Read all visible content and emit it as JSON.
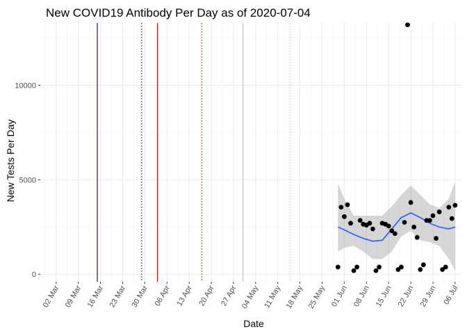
{
  "chart_data": {
    "type": "scatter",
    "title": "New COVID19 Antibody Per Day as of 2020-07-04",
    "xlabel": "Date",
    "ylabel": "New Tests Per Day",
    "xlim": [
      "2020-02-26",
      "2020-07-08"
    ],
    "ylim": [
      -400,
      13300
    ],
    "grid": true,
    "legend": "none",
    "x_ticks": [
      "2020-03-02",
      "2020-03-09",
      "2020-03-16",
      "2020-03-23",
      "2020-03-30",
      "2020-04-06",
      "2020-04-13",
      "2020-04-20",
      "2020-04-27",
      "2020-05-04",
      "2020-05-11",
      "2020-05-18",
      "2020-05-25",
      "2020-06-01",
      "2020-06-08",
      "2020-06-15",
      "2020-06-22",
      "2020-06-29",
      "2020-07-06"
    ],
    "x_tick_labels": [
      "02 Mar",
      "09 Mar",
      "16 Mar",
      "23 Mar",
      "30 Mar",
      "06 Apr",
      "13 Apr",
      "20 Apr",
      "27 Apr",
      "04 May",
      "11 May",
      "18 May",
      "25 May",
      "01 Jun",
      "08 Jun",
      "15 Jun",
      "22 Jun",
      "29 Jun",
      "06 Jul"
    ],
    "y_ticks": [
      0,
      5000,
      10000
    ],
    "y_tick_labels": [
      "0",
      "5000",
      "10000"
    ],
    "reference_lines": [
      {
        "x": "2020-03-15",
        "color": "#000080",
        "style": "solid"
      },
      {
        "x": "2020-03-29",
        "color": "#000080",
        "style": "dotted"
      },
      {
        "x": "2020-04-03",
        "color": "#cc0000",
        "style": "solid"
      },
      {
        "x": "2020-04-17",
        "color": "#cc0000",
        "style": "dotted"
      },
      {
        "x": "2020-04-30",
        "color": "#f4a6a6",
        "style": "solid"
      },
      {
        "x": "2020-05-15",
        "color": "#f4a6a6",
        "style": "dotted"
      }
    ],
    "point_color": "#000000",
    "smooth_color": "#3366ff",
    "band_color": "#999999",
    "points": [
      {
        "x": "2020-05-30",
        "y": 380
      },
      {
        "x": "2020-05-31",
        "y": 3550
      },
      {
        "x": "2020-06-01",
        "y": 3050
      },
      {
        "x": "2020-06-02",
        "y": 3680
      },
      {
        "x": "2020-06-03",
        "y": 2700
      },
      {
        "x": "2020-06-04",
        "y": 190
      },
      {
        "x": "2020-06-05",
        "y": 380
      },
      {
        "x": "2020-06-06",
        "y": 2850
      },
      {
        "x": "2020-06-07",
        "y": 2650
      },
      {
        "x": "2020-06-08",
        "y": 2600
      },
      {
        "x": "2020-06-09",
        "y": 2700
      },
      {
        "x": "2020-06-10",
        "y": 2400
      },
      {
        "x": "2020-06-11",
        "y": 190
      },
      {
        "x": "2020-06-12",
        "y": 380
      },
      {
        "x": "2020-06-13",
        "y": 2700
      },
      {
        "x": "2020-06-14",
        "y": 2650
      },
      {
        "x": "2020-06-15",
        "y": 2550
      },
      {
        "x": "2020-06-16",
        "y": 2300
      },
      {
        "x": "2020-06-17",
        "y": 2150
      },
      {
        "x": "2020-06-18",
        "y": 250
      },
      {
        "x": "2020-06-19",
        "y": 380
      },
      {
        "x": "2020-06-20",
        "y": 2750
      },
      {
        "x": "2020-06-21",
        "y": 13200
      },
      {
        "x": "2020-06-22",
        "y": 3800
      },
      {
        "x": "2020-06-23",
        "y": 2500
      },
      {
        "x": "2020-06-24",
        "y": 1950
      },
      {
        "x": "2020-06-25",
        "y": 250
      },
      {
        "x": "2020-06-26",
        "y": 500
      },
      {
        "x": "2020-06-27",
        "y": 2850
      },
      {
        "x": "2020-06-28",
        "y": 2850
      },
      {
        "x": "2020-06-29",
        "y": 3100
      },
      {
        "x": "2020-06-30",
        "y": 1900
      },
      {
        "x": "2020-07-01",
        "y": 3300
      },
      {
        "x": "2020-07-02",
        "y": 250
      },
      {
        "x": "2020-07-03",
        "y": 380
      },
      {
        "x": "2020-07-04",
        "y": 3550
      },
      {
        "x": "2020-07-05",
        "y": 2950
      },
      {
        "x": "2020-07-06",
        "y": 3650
      }
    ],
    "smooth": [
      {
        "x": "2020-05-30",
        "y": 2500,
        "lo": 1200,
        "hi": 4800
      },
      {
        "x": "2020-06-01",
        "y": 2350,
        "lo": 1400,
        "hi": 4000
      },
      {
        "x": "2020-06-04",
        "y": 2100,
        "lo": 1500,
        "hi": 3100
      },
      {
        "x": "2020-06-07",
        "y": 1900,
        "lo": 1200,
        "hi": 3100
      },
      {
        "x": "2020-06-10",
        "y": 1750,
        "lo": 800,
        "hi": 3100
      },
      {
        "x": "2020-06-13",
        "y": 1800,
        "lo": 800,
        "hi": 3100
      },
      {
        "x": "2020-06-16",
        "y": 2400,
        "lo": 1200,
        "hi": 3600
      },
      {
        "x": "2020-06-19",
        "y": 3000,
        "lo": 2000,
        "hi": 4200
      },
      {
        "x": "2020-06-22",
        "y": 3250,
        "lo": 2300,
        "hi": 4700
      },
      {
        "x": "2020-06-25",
        "y": 3000,
        "lo": 1800,
        "hi": 4200
      },
      {
        "x": "2020-06-28",
        "y": 2700,
        "lo": 1700,
        "hi": 3700
      },
      {
        "x": "2020-07-01",
        "y": 2500,
        "lo": 1500,
        "hi": 3500
      },
      {
        "x": "2020-07-04",
        "y": 2400,
        "lo": 800,
        "hi": 4000
      },
      {
        "x": "2020-07-06",
        "y": 2500,
        "lo": 200,
        "hi": 4900
      }
    ]
  }
}
